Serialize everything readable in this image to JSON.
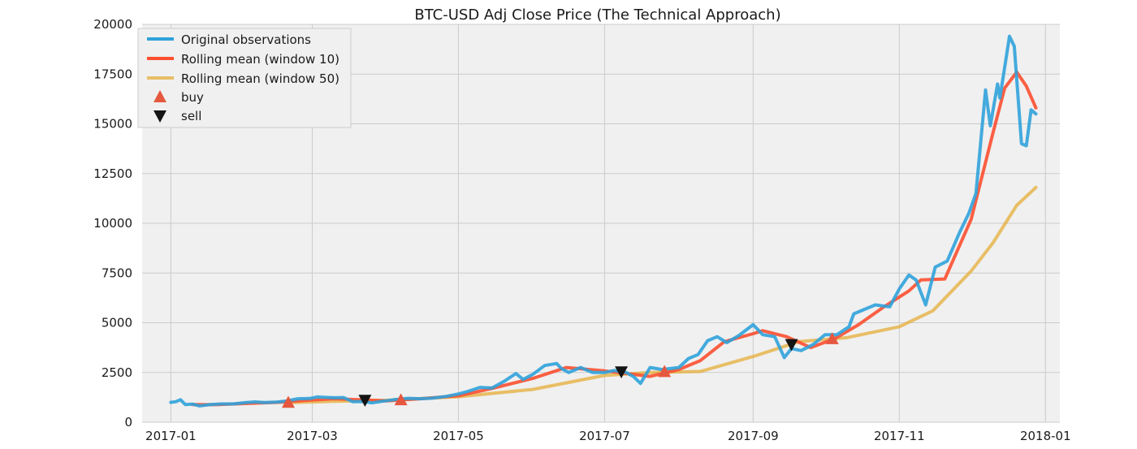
{
  "chart_data": {
    "type": "line",
    "title": "BTC-USD Adj Close Price (The Technical Approach)",
    "xlabel": "",
    "ylabel": "",
    "grid": true,
    "legend_position": "top-left",
    "ylim": [
      0,
      20000
    ],
    "xlim": [
      "2016-12-20",
      "2018-01-07"
    ],
    "x_ticks": [
      "2017-01",
      "2017-03",
      "2017-05",
      "2017-07",
      "2017-09",
      "2017-11",
      "2018-01"
    ],
    "y_ticks": [
      0,
      2500,
      5000,
      7500,
      10000,
      12500,
      15000,
      17500,
      20000
    ],
    "series": [
      {
        "name": "Original observations",
        "color": "#30a2da",
        "points": [
          [
            "2017-01-01",
            1000
          ],
          [
            "2017-01-03",
            1030
          ],
          [
            "2017-01-05",
            1130
          ],
          [
            "2017-01-07",
            890
          ],
          [
            "2017-01-10",
            910
          ],
          [
            "2017-01-13",
            820
          ],
          [
            "2017-01-17",
            880
          ],
          [
            "2017-01-22",
            920
          ],
          [
            "2017-01-27",
            920
          ],
          [
            "2017-02-01",
            985
          ],
          [
            "2017-02-05",
            1020
          ],
          [
            "2017-02-09",
            990
          ],
          [
            "2017-02-14",
            1010
          ],
          [
            "2017-02-18",
            1060
          ],
          [
            "2017-02-23",
            1180
          ],
          [
            "2017-02-28",
            1190
          ],
          [
            "2017-03-03",
            1270
          ],
          [
            "2017-03-10",
            1230
          ],
          [
            "2017-03-14",
            1240
          ],
          [
            "2017-03-18",
            1030
          ],
          [
            "2017-03-22",
            1040
          ],
          [
            "2017-03-26",
            970
          ],
          [
            "2017-03-30",
            1050
          ],
          [
            "2017-04-04",
            1130
          ],
          [
            "2017-04-10",
            1200
          ],
          [
            "2017-04-15",
            1180
          ],
          [
            "2017-04-20",
            1210
          ],
          [
            "2017-04-26",
            1300
          ],
          [
            "2017-05-01",
            1420
          ],
          [
            "2017-05-05",
            1550
          ],
          [
            "2017-05-10",
            1750
          ],
          [
            "2017-05-15",
            1720
          ],
          [
            "2017-05-20",
            2050
          ],
          [
            "2017-05-25",
            2450
          ],
          [
            "2017-05-28",
            2150
          ],
          [
            "2017-06-01",
            2400
          ],
          [
            "2017-06-06",
            2850
          ],
          [
            "2017-06-11",
            2950
          ],
          [
            "2017-06-13",
            2700
          ],
          [
            "2017-06-16",
            2500
          ],
          [
            "2017-06-21",
            2750
          ],
          [
            "2017-06-26",
            2500
          ],
          [
            "2017-07-01",
            2500
          ],
          [
            "2017-07-05",
            2600
          ],
          [
            "2017-07-10",
            2500
          ],
          [
            "2017-07-13",
            2300
          ],
          [
            "2017-07-16",
            1950
          ],
          [
            "2017-07-20",
            2750
          ],
          [
            "2017-07-25",
            2650
          ],
          [
            "2017-08-01",
            2750
          ],
          [
            "2017-08-05",
            3200
          ],
          [
            "2017-08-09",
            3400
          ],
          [
            "2017-08-13",
            4100
          ],
          [
            "2017-08-17",
            4300
          ],
          [
            "2017-08-21",
            4000
          ],
          [
            "2017-08-26",
            4350
          ],
          [
            "2017-09-01",
            4900
          ],
          [
            "2017-09-05",
            4400
          ],
          [
            "2017-09-10",
            4300
          ],
          [
            "2017-09-14",
            3250
          ],
          [
            "2017-09-17",
            3700
          ],
          [
            "2017-09-21",
            3600
          ],
          [
            "2017-09-26",
            3900
          ],
          [
            "2017-10-01",
            4400
          ],
          [
            "2017-10-06",
            4400
          ],
          [
            "2017-10-11",
            4800
          ],
          [
            "2017-10-13",
            5450
          ],
          [
            "2017-10-18",
            5700
          ],
          [
            "2017-10-22",
            5900
          ],
          [
            "2017-10-28",
            5800
          ],
          [
            "2017-11-01",
            6700
          ],
          [
            "2017-11-05",
            7400
          ],
          [
            "2017-11-08",
            7150
          ],
          [
            "2017-11-12",
            5900
          ],
          [
            "2017-11-16",
            7800
          ],
          [
            "2017-11-21",
            8100
          ],
          [
            "2017-11-26",
            9500
          ],
          [
            "2017-11-30",
            10500
          ],
          [
            "2017-12-03",
            11500
          ],
          [
            "2017-12-07",
            16700
          ],
          [
            "2017-12-09",
            14900
          ],
          [
            "2017-12-12",
            17000
          ],
          [
            "2017-12-13",
            16300
          ],
          [
            "2017-12-17",
            19400
          ],
          [
            "2017-12-19",
            18900
          ],
          [
            "2017-12-22",
            14000
          ],
          [
            "2017-12-24",
            13900
          ],
          [
            "2017-12-26",
            15700
          ],
          [
            "2017-12-28",
            15500
          ]
        ]
      },
      {
        "name": "Rolling mean (window 10)",
        "color": "#fc4f30",
        "points": [
          [
            "2017-01-10",
            890
          ],
          [
            "2017-01-20",
            880
          ],
          [
            "2017-02-01",
            940
          ],
          [
            "2017-02-15",
            1000
          ],
          [
            "2017-03-01",
            1120
          ],
          [
            "2017-03-10",
            1180
          ],
          [
            "2017-03-20",
            1130
          ],
          [
            "2017-04-01",
            1070
          ],
          [
            "2017-04-15",
            1180
          ],
          [
            "2017-05-01",
            1330
          ],
          [
            "2017-05-15",
            1700
          ],
          [
            "2017-06-01",
            2200
          ],
          [
            "2017-06-15",
            2750
          ],
          [
            "2017-07-01",
            2580
          ],
          [
            "2017-07-10",
            2450
          ],
          [
            "2017-07-20",
            2300
          ],
          [
            "2017-08-01",
            2650
          ],
          [
            "2017-08-10",
            3100
          ],
          [
            "2017-08-20",
            4050
          ],
          [
            "2017-09-01",
            4450
          ],
          [
            "2017-09-05",
            4600
          ],
          [
            "2017-09-15",
            4300
          ],
          [
            "2017-09-25",
            3750
          ],
          [
            "2017-10-05",
            4200
          ],
          [
            "2017-10-15",
            4900
          ],
          [
            "2017-10-25",
            5750
          ],
          [
            "2017-11-05",
            6600
          ],
          [
            "2017-11-10",
            7150
          ],
          [
            "2017-11-20",
            7200
          ],
          [
            "2017-12-01",
            10200
          ],
          [
            "2017-12-10",
            14500
          ],
          [
            "2017-12-15",
            16800
          ],
          [
            "2017-12-20",
            17600
          ],
          [
            "2017-12-24",
            16900
          ],
          [
            "2017-12-28",
            15800
          ]
        ]
      },
      {
        "name": "Rolling mean (window 50)",
        "color": "#e5ae38",
        "points": [
          [
            "2017-02-19",
            980
          ],
          [
            "2017-03-10",
            1050
          ],
          [
            "2017-04-01",
            1100
          ],
          [
            "2017-05-01",
            1280
          ],
          [
            "2017-06-01",
            1650
          ],
          [
            "2017-07-01",
            2350
          ],
          [
            "2017-07-20",
            2500
          ],
          [
            "2017-08-10",
            2550
          ],
          [
            "2017-09-01",
            3300
          ],
          [
            "2017-09-20",
            4050
          ],
          [
            "2017-10-10",
            4250
          ],
          [
            "2017-11-01",
            4800
          ],
          [
            "2017-11-15",
            5600
          ],
          [
            "2017-12-01",
            7600
          ],
          [
            "2017-12-10",
            9000
          ],
          [
            "2017-12-20",
            10900
          ],
          [
            "2017-12-28",
            11800
          ]
        ]
      }
    ],
    "buy_signals": {
      "name": "buy",
      "color": "#e5583f",
      "points": [
        [
          "2017-02-19",
          1000
        ],
        [
          "2017-04-07",
          1130
        ],
        [
          "2017-07-26",
          2550
        ],
        [
          "2017-10-04",
          4200
        ]
      ]
    },
    "sell_signals": {
      "name": "sell",
      "color": "#141414",
      "points": [
        [
          "2017-03-23",
          1100
        ],
        [
          "2017-07-08",
          2530
        ],
        [
          "2017-09-17",
          3900
        ]
      ]
    }
  }
}
